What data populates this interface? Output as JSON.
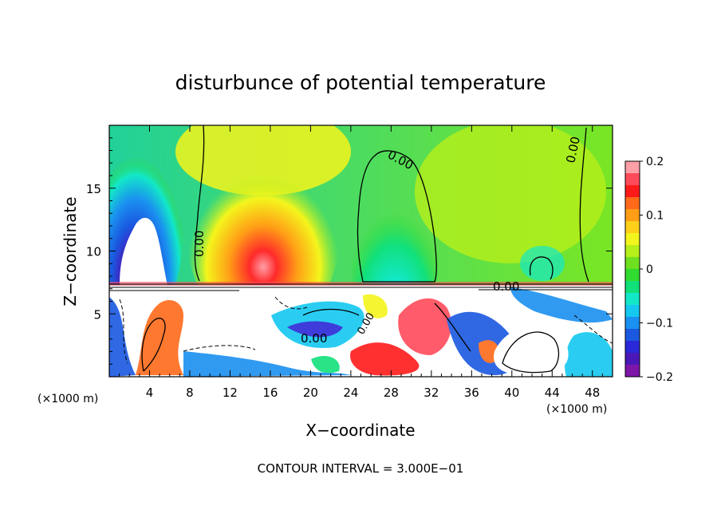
{
  "chart_data": {
    "type": "heatmap",
    "title": "disturbunce of potential temperature",
    "xlabel": "X−coordinate",
    "ylabel": "Z−coordinate",
    "x_unit_left": "(×1000 m)",
    "x_unit_right": "(×1000 m)",
    "xlim": [
      0,
      50
    ],
    "ylim": [
      0,
      20
    ],
    "x_ticks": [
      4,
      8,
      12,
      16,
      20,
      24,
      28,
      32,
      36,
      40,
      44,
      48
    ],
    "x_tick_labels": [
      "4",
      "8",
      "12",
      "16",
      "20",
      "24",
      "28",
      "32",
      "36",
      "40",
      "44",
      "48"
    ],
    "y_ticks": [
      5,
      10,
      15
    ],
    "y_tick_labels": [
      "5",
      "10",
      "15"
    ],
    "colorbar": {
      "range": [
        -0.2,
        0.2
      ],
      "ticks": [
        0.2,
        0.1,
        0,
        -0.1,
        -0.2
      ],
      "tick_labels": [
        "0.2",
        "0.1",
        "0",
        "−0.1",
        "−0.2"
      ],
      "colors": [
        "#ff9fa8",
        "#ff4a5a",
        "#ff1a1a",
        "#ff6a1a",
        "#ff9e16",
        "#ffcf1a",
        "#f4f51c",
        "#b6ef1a",
        "#6ee020",
        "#30dc30",
        "#12e07a",
        "#12e8c8",
        "#14c8f0",
        "#1a90f0",
        "#1a58e0",
        "#2a28d8",
        "#4a18b8",
        "#7e16a8"
      ]
    },
    "contour_labels": [
      "0.00",
      "0.00",
      "0.00",
      "0.00",
      "0.00",
      "0.00"
    ],
    "contour_interval_text": "CONTOUR INTERVAL = 3.000E−01"
  }
}
